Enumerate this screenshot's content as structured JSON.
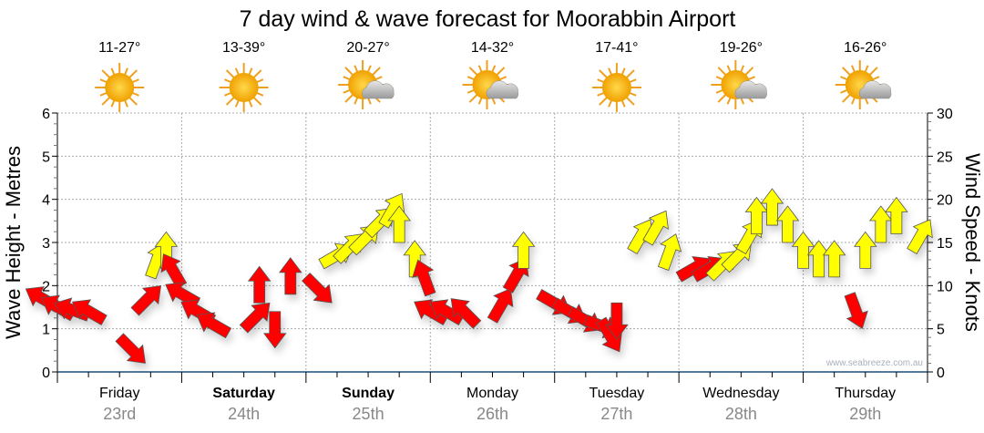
{
  "chart_data": {
    "type": "scatter",
    "title": "7 day wind & wave forecast for Moorabbin Airport",
    "ylabel": "Wave Height - Metres",
    "y2label": "Wind Speed - Knots",
    "ylim": [
      0,
      6
    ],
    "y2lim": [
      0,
      30
    ],
    "yticks": [
      "0",
      "1",
      "2",
      "3",
      "4",
      "5",
      "6"
    ],
    "y2ticks": [
      "0",
      "5",
      "10",
      "15",
      "20",
      "25",
      "30"
    ],
    "grid": true,
    "watermark": "www.seabreeze.com.au",
    "interval_hours": 3,
    "days": [
      {
        "day": "Friday",
        "date": "23rd",
        "temp": "11-27°",
        "icon": "sun",
        "bold": false
      },
      {
        "day": "Saturday",
        "date": "24th",
        "temp": "13-39°",
        "icon": "sun",
        "bold": true
      },
      {
        "day": "Sunday",
        "date": "25th",
        "temp": "20-27°",
        "icon": "sun-cloud",
        "bold": true
      },
      {
        "day": "Monday",
        "date": "26th",
        "temp": "14-32°",
        "icon": "sun-cloud",
        "bold": false
      },
      {
        "day": "Tuesday",
        "date": "27th",
        "temp": "17-41°",
        "icon": "sun",
        "bold": false
      },
      {
        "day": "Wednesday",
        "date": "28th",
        "temp": "19-26°",
        "icon": "sun-cloud",
        "bold": false
      },
      {
        "day": "Thursday",
        "date": "29th",
        "temp": "16-26°",
        "icon": "sun-cloud",
        "bold": false
      }
    ],
    "colors": {
      "offshore": "#ff0000",
      "onshore": "#ffff00",
      "grid": "#aaaaaa",
      "axis": "#1a4f7a"
    },
    "wind": [
      {
        "kn": 7.5,
        "dir": 300,
        "c": "offshore"
      },
      {
        "kn": 6.5,
        "dir": 300,
        "c": "offshore"
      },
      {
        "kn": 6.5,
        "dir": 290,
        "c": "offshore"
      },
      {
        "kn": 6,
        "dir": 300,
        "c": "offshore"
      },
      {
        "kn": 4,
        "dir": 135,
        "c": "offshore"
      },
      {
        "kn": 7,
        "dir": 45,
        "c": "offshore"
      },
      {
        "kn": 11,
        "dir": 20,
        "c": "onshore"
      },
      {
        "kn": 12,
        "dir": 0,
        "c": "onshore"
      },
      {
        "kn": 10,
        "dir": 330,
        "c": "offshore"
      },
      {
        "kn": 8,
        "dir": 300,
        "c": "offshore"
      },
      {
        "kn": 6,
        "dir": 300,
        "c": "offshore"
      },
      {
        "kn": 4.5,
        "dir": 300,
        "c": "offshore"
      },
      {
        "kn": 5,
        "dir": 45,
        "c": "offshore"
      },
      {
        "kn": 8,
        "dir": 0,
        "c": "offshore"
      },
      {
        "kn": 7,
        "dir": 180,
        "c": "offshore"
      },
      {
        "kn": 9,
        "dir": 0,
        "c": "offshore"
      },
      {
        "kn": 11,
        "dir": 135,
        "c": "offshore"
      },
      {
        "kn": 12.5,
        "dir": 60,
        "c": "onshore"
      },
      {
        "kn": 13,
        "dir": 45,
        "c": "onshore"
      },
      {
        "kn": 14,
        "dir": 45,
        "c": "onshore"
      },
      {
        "kn": 16,
        "dir": 45,
        "c": "onshore"
      },
      {
        "kn": 17,
        "dir": 30,
        "c": "onshore"
      },
      {
        "kn": 15,
        "dir": 0,
        "c": "onshore"
      },
      {
        "kn": 11,
        "dir": 0,
        "c": "onshore"
      },
      {
        "kn": 9,
        "dir": 340,
        "c": "offshore"
      },
      {
        "kn": 6,
        "dir": 300,
        "c": "offshore"
      },
      {
        "kn": 6,
        "dir": 300,
        "c": "offshore"
      },
      {
        "kn": 5.5,
        "dir": 315,
        "c": "offshore"
      },
      {
        "kn": 6,
        "dir": 30,
        "c": "offshore"
      },
      {
        "kn": 9.5,
        "dir": 30,
        "c": "offshore"
      },
      {
        "kn": 12,
        "dir": 0,
        "c": "onshore"
      },
      {
        "kn": 9,
        "dir": 120,
        "c": "offshore"
      },
      {
        "kn": 8,
        "dir": 120,
        "c": "offshore"
      },
      {
        "kn": 7,
        "dir": 120,
        "c": "offshore"
      },
      {
        "kn": 6,
        "dir": 110,
        "c": "offshore"
      },
      {
        "kn": 6,
        "dir": 150,
        "c": "offshore"
      },
      {
        "kn": 8,
        "dir": 180,
        "c": "offshore"
      },
      {
        "kn": 14,
        "dir": 30,
        "c": "onshore"
      },
      {
        "kn": 15,
        "dir": 30,
        "c": "onshore"
      },
      {
        "kn": 12,
        "dir": 20,
        "c": "onshore"
      },
      {
        "kn": 11,
        "dir": 60,
        "c": "offshore"
      },
      {
        "kn": 11,
        "dir": 60,
        "c": "offshore"
      },
      {
        "kn": 11,
        "dir": 45,
        "c": "onshore"
      },
      {
        "kn": 12,
        "dir": 45,
        "c": "onshore"
      },
      {
        "kn": 14,
        "dir": 30,
        "c": "onshore"
      },
      {
        "kn": 16,
        "dir": 0,
        "c": "onshore"
      },
      {
        "kn": 17,
        "dir": 0,
        "c": "onshore"
      },
      {
        "kn": 15,
        "dir": 0,
        "c": "onshore"
      },
      {
        "kn": 12,
        "dir": 0,
        "c": "onshore"
      },
      {
        "kn": 11,
        "dir": 0,
        "c": "onshore"
      },
      {
        "kn": 11,
        "dir": 0,
        "c": "onshore"
      },
      {
        "kn": 9,
        "dir": 160,
        "c": "offshore"
      },
      {
        "kn": 12,
        "dir": 0,
        "c": "onshore"
      },
      {
        "kn": 15,
        "dir": 0,
        "c": "onshore"
      },
      {
        "kn": 16,
        "dir": 0,
        "c": "onshore"
      },
      {
        "kn": 14,
        "dir": 30,
        "c": "onshore"
      }
    ]
  }
}
